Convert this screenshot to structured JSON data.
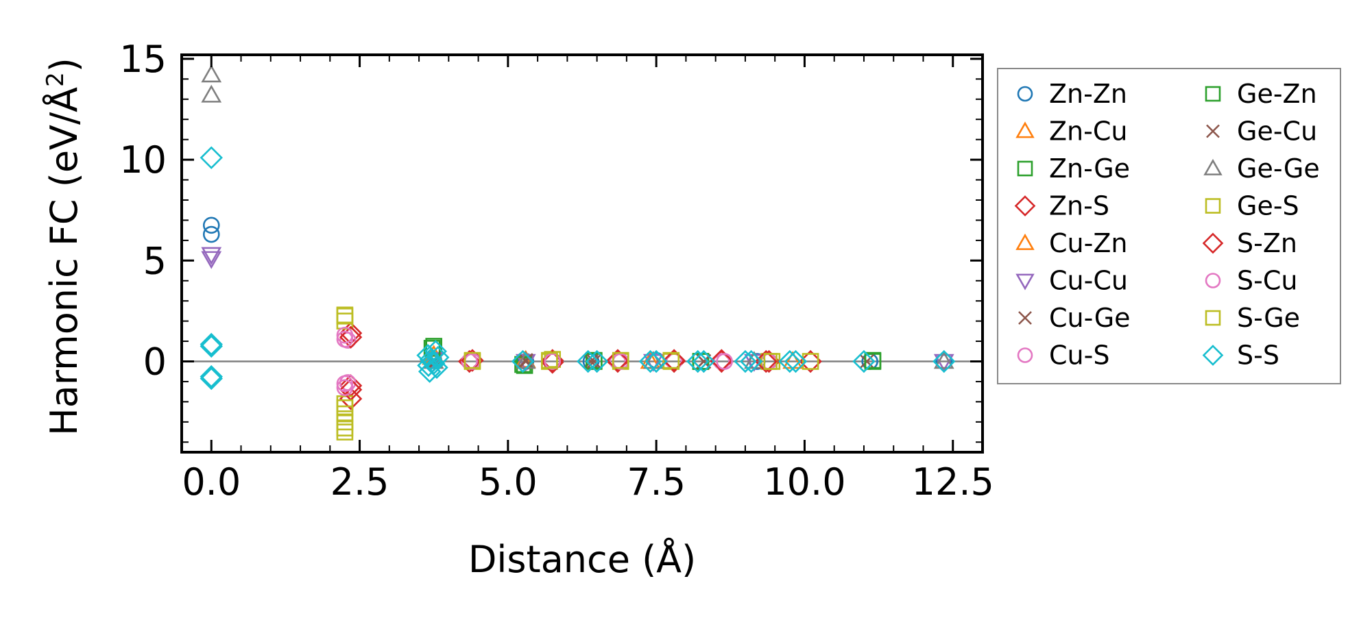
{
  "chart_data": {
    "type": "scatter",
    "title": "",
    "xlabel": "Distance (Å)",
    "ylabel_main": "Harmonic FC (eV/Å",
    "ylabel_sup": "2",
    "ylabel_tail": ")",
    "xlim": [
      -0.5,
      13.0
    ],
    "ylim": [
      -4.5,
      15.2
    ],
    "xticks": [
      0.0,
      2.5,
      5.0,
      7.5,
      10.0,
      12.5
    ],
    "xtick_labels": [
      "0.0",
      "2.5",
      "5.0",
      "7.5",
      "10.0",
      "12.5"
    ],
    "yticks": [
      0,
      5,
      10,
      15
    ],
    "ytick_labels": [
      "0",
      "5",
      "10",
      "15"
    ],
    "zero_line": true,
    "legend_position": "outside-right",
    "series": [
      {
        "name": "Zn-Zn",
        "marker": "circle",
        "color": "#1f77b4",
        "points": [
          [
            0,
            6.3
          ],
          [
            0,
            6.75
          ],
          [
            3.75,
            0.05
          ],
          [
            5.3,
            0.0
          ],
          [
            6.4,
            0.0
          ],
          [
            7.5,
            0.05
          ],
          [
            9.2,
            0.0
          ],
          [
            11.1,
            0.0
          ],
          [
            12.35,
            0.0
          ]
        ]
      },
      {
        "name": "Zn-Cu",
        "marker": "triangle-up",
        "color": "#ff7f0e",
        "points": [
          [
            3.75,
            0.3
          ],
          [
            5.3,
            0.05
          ],
          [
            7.4,
            0.0
          ],
          [
            9.8,
            0.0
          ]
        ]
      },
      {
        "name": "Zn-Ge",
        "marker": "square",
        "color": "#2ca02c",
        "points": [
          [
            3.75,
            0.75
          ],
          [
            5.28,
            -0.2
          ],
          [
            6.45,
            0.0
          ],
          [
            8.25,
            0.0
          ],
          [
            11.15,
            0.0
          ]
        ]
      },
      {
        "name": "Zn-S",
        "marker": "diamond",
        "color": "#d62728",
        "points": [
          [
            2.35,
            1.4
          ],
          [
            2.35,
            -1.2
          ],
          [
            2.35,
            -1.85
          ],
          [
            4.35,
            0.0
          ],
          [
            5.75,
            0.05
          ],
          [
            6.85,
            0.0
          ],
          [
            7.8,
            0.0
          ],
          [
            8.6,
            0.0
          ],
          [
            9.4,
            0.0
          ],
          [
            10.1,
            0.0
          ]
        ]
      },
      {
        "name": "Cu-Zn",
        "marker": "triangle-up",
        "color": "#ff7f0e",
        "points": [
          [
            3.72,
            0.2
          ],
          [
            5.28,
            0.0
          ],
          [
            7.45,
            0.0
          ]
        ]
      },
      {
        "name": "Cu-Cu",
        "marker": "triangle-down",
        "color": "#9467bd",
        "points": [
          [
            0,
            5.1
          ],
          [
            0,
            5.3
          ],
          [
            3.75,
            0.1
          ],
          [
            5.3,
            0.0
          ],
          [
            7.45,
            0.0
          ],
          [
            9.15,
            0.0
          ],
          [
            12.35,
            0.0
          ]
        ]
      },
      {
        "name": "Cu-Ge",
        "marker": "x",
        "color": "#8c564b",
        "points": [
          [
            3.75,
            0.0
          ],
          [
            5.3,
            0.0
          ],
          [
            6.4,
            0.0
          ],
          [
            8.3,
            0.0
          ],
          [
            11.05,
            0.0
          ]
        ]
      },
      {
        "name": "Cu-S",
        "marker": "circle",
        "color": "#e377c2",
        "points": [
          [
            2.3,
            1.05
          ],
          [
            2.3,
            -1.05
          ],
          [
            4.35,
            0.0
          ],
          [
            5.75,
            0.0
          ],
          [
            6.85,
            0.0
          ],
          [
            7.8,
            0.0
          ],
          [
            8.6,
            0.0
          ],
          [
            9.4,
            0.0
          ]
        ]
      },
      {
        "name": "Ge-Zn",
        "marker": "square",
        "color": "#2ca02c",
        "points": [
          [
            3.72,
            0.65
          ],
          [
            5.25,
            -0.15
          ],
          [
            6.45,
            0.05
          ],
          [
            8.25,
            0.0
          ],
          [
            11.15,
            0.05
          ]
        ]
      },
      {
        "name": "Ge-Cu",
        "marker": "x",
        "color": "#8c564b",
        "points": [
          [
            3.78,
            0.0
          ],
          [
            5.3,
            0.05
          ],
          [
            6.45,
            0.0
          ],
          [
            8.3,
            0.0
          ]
        ]
      },
      {
        "name": "Ge-Ge",
        "marker": "triangle-up",
        "color": "#7f7f7f",
        "points": [
          [
            0,
            13.2
          ],
          [
            0,
            14.2
          ],
          [
            3.75,
            0.0
          ],
          [
            5.3,
            0.0
          ],
          [
            7.45,
            0.0
          ],
          [
            9.15,
            0.0
          ],
          [
            12.35,
            0.0
          ]
        ]
      },
      {
        "name": "Ge-S",
        "marker": "square",
        "color": "#bcbd22",
        "points": [
          [
            2.25,
            2.3
          ],
          [
            2.25,
            2.0
          ],
          [
            2.25,
            -2.1
          ],
          [
            2.25,
            -2.6
          ],
          [
            2.25,
            -3.0
          ],
          [
            2.25,
            -3.5
          ],
          [
            4.4,
            0.0
          ],
          [
            5.7,
            0.0
          ],
          [
            5.75,
            0.1
          ],
          [
            6.9,
            0.0
          ],
          [
            7.75,
            0.0
          ],
          [
            9.4,
            0.0
          ],
          [
            10.1,
            0.0
          ]
        ]
      },
      {
        "name": "S-Zn",
        "marker": "diamond",
        "color": "#d62728",
        "points": [
          [
            2.35,
            1.2
          ],
          [
            2.35,
            -1.4
          ],
          [
            4.4,
            0.05
          ],
          [
            5.75,
            -0.05
          ],
          [
            6.85,
            0.05
          ],
          [
            7.8,
            0.05
          ],
          [
            8.6,
            0.05
          ],
          [
            9.35,
            0.0
          ]
        ]
      },
      {
        "name": "S-Cu",
        "marker": "circle",
        "color": "#e377c2",
        "points": [
          [
            2.25,
            1.3
          ],
          [
            2.25,
            1.1
          ],
          [
            2.25,
            -1.1
          ],
          [
            2.25,
            -1.3
          ],
          [
            4.4,
            0.0
          ],
          [
            5.75,
            0.0
          ],
          [
            6.9,
            0.0
          ],
          [
            8.65,
            0.0
          ]
        ]
      },
      {
        "name": "S-Ge",
        "marker": "square",
        "color": "#bcbd22",
        "points": [
          [
            2.25,
            2.25
          ],
          [
            2.25,
            -2.3
          ],
          [
            2.25,
            -3.3
          ],
          [
            4.4,
            0.05
          ],
          [
            5.7,
            0.05
          ],
          [
            6.9,
            0.05
          ],
          [
            7.75,
            0.05
          ],
          [
            9.45,
            0.0
          ]
        ]
      },
      {
        "name": "S-S",
        "marker": "diamond",
        "color": "#17becf",
        "points": [
          [
            0,
            10.1
          ],
          [
            0,
            0.85
          ],
          [
            0,
            0.75
          ],
          [
            0,
            -0.75
          ],
          [
            0,
            -0.85
          ],
          [
            3.65,
            0.3
          ],
          [
            3.7,
            0.1
          ],
          [
            3.75,
            -0.1
          ],
          [
            3.8,
            -0.3
          ],
          [
            3.68,
            -0.5
          ],
          [
            3.78,
            0.5
          ],
          [
            3.72,
            0.0
          ],
          [
            3.66,
            -0.2
          ],
          [
            3.82,
            0.2
          ],
          [
            5.25,
            0.0
          ],
          [
            6.35,
            0.0
          ],
          [
            6.5,
            0.0
          ],
          [
            7.4,
            0.0
          ],
          [
            7.5,
            0.0
          ],
          [
            8.2,
            0.0
          ],
          [
            8.3,
            0.0
          ],
          [
            9.0,
            0.0
          ],
          [
            9.1,
            0.0
          ],
          [
            9.75,
            0.0
          ],
          [
            9.85,
            0.0
          ],
          [
            11.0,
            0.0
          ],
          [
            12.35,
            0.0
          ]
        ]
      }
    ]
  }
}
